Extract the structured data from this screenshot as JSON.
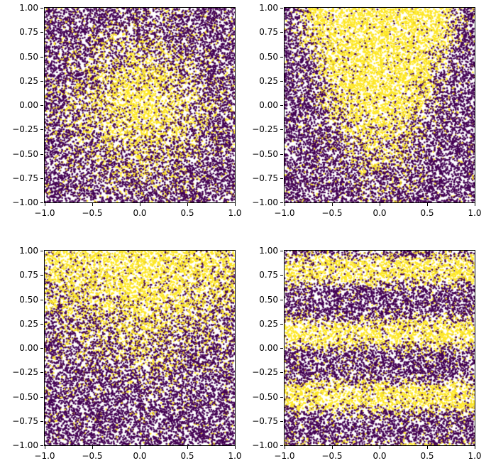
{
  "figure": {
    "background": "#ffffff",
    "n_subplots": 4,
    "grid": "2x2"
  },
  "chart_data": [
    {
      "id": "top-left",
      "type": "scatter",
      "title": "",
      "xlabel": "",
      "ylabel": "",
      "xlim": [
        -1,
        1
      ],
      "ylim": [
        -1,
        1
      ],
      "x_ticks": {
        "values": [
          -1,
          -0.5,
          0,
          0.5,
          1
        ],
        "labels": [
          "−1.0",
          "−0.5",
          "0.0",
          "0.5",
          "1.0"
        ]
      },
      "y_ticks": {
        "values": [
          1,
          0.75,
          0.5,
          0.25,
          0,
          -0.25,
          -0.5,
          -0.75,
          -1
        ],
        "labels": [
          "1.00",
          "0.75",
          "0.50",
          "0.25",
          "0.00",
          "−0.25",
          "−0.50",
          "−0.75",
          "−1.00"
        ]
      },
      "n_points": 13000,
      "seed": 42,
      "marker_radius_px": 1.3,
      "colors": {
        "negative": "#440154",
        "positive": "#fde725"
      },
      "pattern": {
        "kind": "radial",
        "description": "Uniformly scattered points in [-1,1]^2; probability of yellow class is highest near the origin and decays radially, giving a fuzzy yellow blob centered at (0,0) on a purple field with noise speckle.",
        "params": {
          "r0": 0.5,
          "k": 5,
          "floor": 0.06,
          "span": 0.88
        }
      }
    },
    {
      "id": "top-right",
      "type": "scatter",
      "title": "",
      "xlabel": "",
      "ylabel": "",
      "xlim": [
        -1,
        1
      ],
      "ylim": [
        -1,
        1
      ],
      "x_ticks": {
        "values": [
          -1,
          -0.5,
          0,
          0.5,
          1
        ],
        "labels": [
          "−1.0",
          "−0.5",
          "0.0",
          "0.5",
          "1.0"
        ]
      },
      "y_ticks": {
        "values": [
          1,
          0.75,
          0.5,
          0.25,
          0,
          -0.25,
          -0.5,
          -0.75,
          -1
        ],
        "labels": [
          "1.00",
          "0.75",
          "0.50",
          "0.25",
          "0.00",
          "−0.25",
          "−0.50",
          "−0.75",
          "−1.00"
        ]
      },
      "n_points": 13000,
      "seed": 7,
      "marker_radius_px": 1.3,
      "colors": {
        "negative": "#440154",
        "positive": "#fde725"
      },
      "pattern": {
        "kind": "parabola",
        "description": "Yellow class fills a parabolic funnel region y > 2.2*x^2 - 0.5: wide and dense at top-center, narrowing toward the bottom, purple elsewhere with noise speckle.",
        "params": {
          "a": 2.2,
          "b": -0.5,
          "k": 4.5,
          "floor": 0.05,
          "span": 0.9
        }
      }
    },
    {
      "id": "bottom-left",
      "type": "scatter",
      "title": "",
      "xlabel": "",
      "ylabel": "",
      "xlim": [
        -1,
        1
      ],
      "ylim": [
        -1,
        1
      ],
      "x_ticks": {
        "values": [
          -1,
          -0.5,
          0,
          0.5,
          1
        ],
        "labels": [
          "−1.0",
          "−0.5",
          "0.0",
          "0.5",
          "1.0"
        ]
      },
      "y_ticks": {
        "values": [
          1,
          0.75,
          0.5,
          0.25,
          0,
          -0.25,
          -0.5,
          -0.75,
          -1
        ],
        "labels": [
          "1.00",
          "0.75",
          "0.50",
          "0.25",
          "0.00",
          "−0.25",
          "−0.50",
          "−0.75",
          "−1.00"
        ]
      },
      "n_points": 13000,
      "seed": 13,
      "marker_radius_px": 1.3,
      "colors": {
        "negative": "#440154",
        "positive": "#fde725"
      },
      "pattern": {
        "kind": "tilted",
        "description": "Yellow class probability increases with y and is strongest along the top edge, extending farther down near x=0 (boundary roughly y = 0.05 + 0.5*|x|); purple dominates the lower half with noise speckle.",
        "params": {
          "c": 0.05,
          "d": 0.5,
          "k": 3.8,
          "floor": 0.05,
          "span": 0.9
        }
      }
    },
    {
      "id": "bottom-right",
      "type": "scatter",
      "title": "",
      "xlabel": "",
      "ylabel": "",
      "xlim": [
        -1,
        1
      ],
      "ylim": [
        -1,
        1
      ],
      "x_ticks": {
        "values": [
          -1,
          -0.5,
          0,
          0.5,
          1
        ],
        "labels": [
          "−1.0",
          "−0.5",
          "0.0",
          "0.5",
          "1.0"
        ]
      },
      "y_ticks": {
        "values": [
          1,
          0.75,
          0.5,
          0.25,
          0,
          -0.25,
          -0.5,
          -0.75,
          -1
        ],
        "labels": [
          "1.00",
          "0.75",
          "0.50",
          "0.25",
          "0.00",
          "−0.25",
          "−0.50",
          "−0.75",
          "−1.00"
        ]
      },
      "n_points": 13000,
      "seed": 99,
      "marker_radius_px": 1.3,
      "colors": {
        "negative": "#440154",
        "positive": "#fde725"
      },
      "pattern": {
        "kind": "bands",
        "description": "Horizontal sinusoidal stripes: yellow bands centered near y = 0.8, 0.15 and −0.5 (period 0.65), with a partial band at the bottom edge; purple bands in between, noise speckle throughout.",
        "params": {
          "y0": 0.15,
          "T": 0.65,
          "t": 0.25,
          "k": 3.2,
          "floor": 0.05,
          "span": 0.9
        }
      }
    }
  ]
}
